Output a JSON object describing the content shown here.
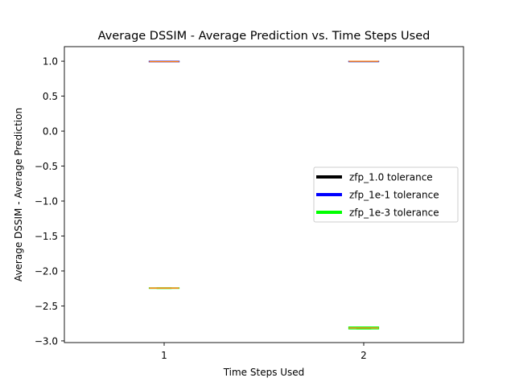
{
  "chart_data": {
    "type": "box",
    "title": "Average DSSIM - Average Prediction vs. Time Steps Used",
    "xlabel": "Time Steps Used",
    "ylabel": "Average DSSIM - Average Prediction",
    "categories": [
      "1",
      "2"
    ],
    "ylim": [
      -3.0,
      1.2
    ],
    "yticks": [
      1.0,
      0.5,
      0.0,
      -0.5,
      -1.0,
      -1.5,
      -2.0,
      -2.5,
      -3.0
    ],
    "ytick_labels": [
      "1.0",
      "0.5",
      "0.0",
      "−0.5",
      "−1.0",
      "−1.5",
      "−2.0",
      "−2.5",
      "−3.0"
    ],
    "grid": false,
    "legend_position": "center-right",
    "series": [
      {
        "name": "zfp_1.0 tolerance",
        "color": "#000000",
        "boxes": [
          {
            "x": 1,
            "values": [
              1.0,
              0.995,
              0.99
            ]
          },
          {
            "x": 2,
            "values": [
              1.0,
              0.999,
              0.998
            ]
          }
        ]
      },
      {
        "name": "zfp_1e-1 tolerance",
        "color": "#0000ff",
        "boxes": [
          {
            "x": 1,
            "values": [
              1.0,
              0.995,
              0.99
            ]
          },
          {
            "x": 2,
            "values": [
              1.0,
              0.999,
              0.998
            ]
          }
        ]
      },
      {
        "name": "zfp_1e-3 tolerance",
        "color": "#00ff00",
        "boxes": [
          {
            "x": 1,
            "values": [
              -2.24,
              -2.245,
              -2.25
            ]
          },
          {
            "x": 2,
            "values": [
              -2.8,
              -2.815,
              -2.83
            ]
          }
        ]
      }
    ],
    "median_color": "#ff7f0e"
  }
}
